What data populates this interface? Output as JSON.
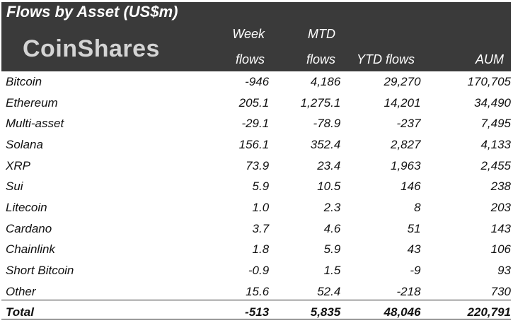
{
  "title": "Flows by Asset (US$m)",
  "logo": "CoinShares",
  "columns": {
    "week": [
      "Week",
      "flows"
    ],
    "mtd": [
      "MTD",
      "flows"
    ],
    "ytd": "YTD flows",
    "aum": "AUM"
  },
  "rows": [
    {
      "name": "Bitcoin",
      "week": "-946",
      "mtd": "4,186",
      "ytd": "29,270",
      "aum": "170,705"
    },
    {
      "name": "Ethereum",
      "week": "205.1",
      "mtd": "1,275.1",
      "ytd": "14,201",
      "aum": "34,490"
    },
    {
      "name": "Multi-asset",
      "week": "-29.1",
      "mtd": "-78.9",
      "ytd": "-237",
      "aum": "7,495"
    },
    {
      "name": "Solana",
      "week": "156.1",
      "mtd": "352.4",
      "ytd": "2,827",
      "aum": "4,133"
    },
    {
      "name": "XRP",
      "week": "73.9",
      "mtd": "23.4",
      "ytd": "1,963",
      "aum": "2,455"
    },
    {
      "name": "Sui",
      "week": "5.9",
      "mtd": "10.5",
      "ytd": "146",
      "aum": "238"
    },
    {
      "name": "Litecoin",
      "week": "1.0",
      "mtd": "2.3",
      "ytd": "8",
      "aum": "203"
    },
    {
      "name": "Cardano",
      "week": "3.7",
      "mtd": "4.6",
      "ytd": "51",
      "aum": "143"
    },
    {
      "name": "Chainlink",
      "week": "1.8",
      "mtd": "5.9",
      "ytd": "43",
      "aum": "106"
    },
    {
      "name": "Short Bitcoin",
      "week": "-0.9",
      "mtd": "1.5",
      "ytd": "-9",
      "aum": "93"
    },
    {
      "name": "Other",
      "week": "15.6",
      "mtd": "52.4",
      "ytd": "-218",
      "aum": "730"
    }
  ],
  "total": {
    "name": "Total",
    "week": "-513",
    "mtd": "5,835",
    "ytd": "48,046",
    "aum": "220,791"
  },
  "colors": {
    "header_bg": "#3a3a3a",
    "negative": "#e8322f",
    "logo": "#d4d4d4"
  }
}
